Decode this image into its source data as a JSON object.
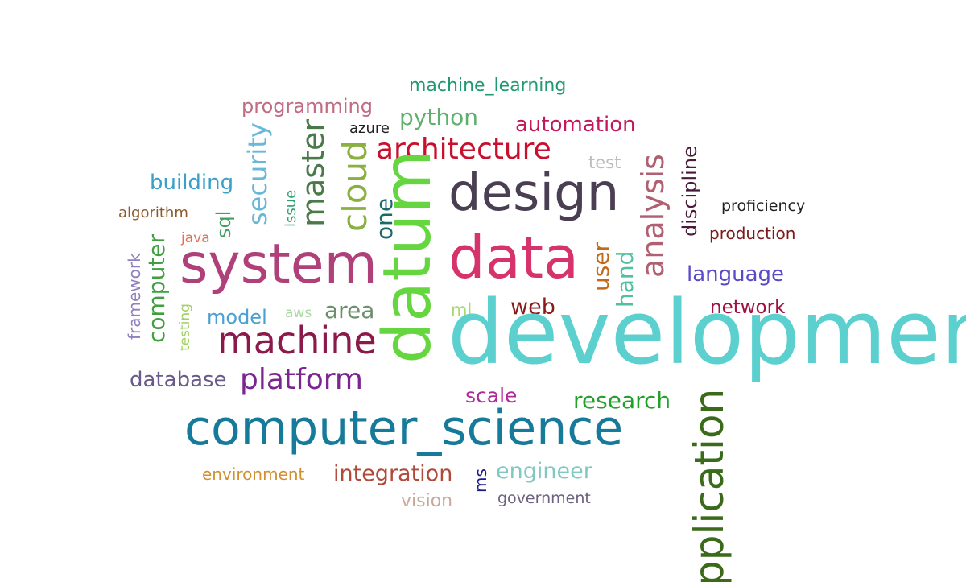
{
  "words": [
    {
      "text": "machine_learning",
      "color": "#1f9a6e",
      "orientation": "horizontal"
    },
    {
      "text": "programming",
      "color": "#c06c84",
      "orientation": "horizontal"
    },
    {
      "text": "python",
      "color": "#5fb06f",
      "orientation": "horizontal"
    },
    {
      "text": "automation",
      "color": "#c2185b",
      "orientation": "horizontal"
    },
    {
      "text": "azure",
      "color": "#222222",
      "orientation": "horizontal"
    },
    {
      "text": "architecture",
      "color": "#c8102e",
      "orientation": "horizontal"
    },
    {
      "text": "test",
      "color": "#bdbdbd",
      "orientation": "horizontal"
    },
    {
      "text": "design",
      "color": "#4a3f52",
      "orientation": "horizontal"
    },
    {
      "text": "building",
      "color": "#3aa0c8",
      "orientation": "horizontal"
    },
    {
      "text": "proficiency",
      "color": "#222222",
      "orientation": "horizontal"
    },
    {
      "text": "algorithm",
      "color": "#8b5a2b",
      "orientation": "horizontal"
    },
    {
      "text": "production",
      "color": "#7b1a1a",
      "orientation": "horizontal"
    },
    {
      "text": "java",
      "color": "#e07050",
      "orientation": "horizontal"
    },
    {
      "text": "system",
      "color": "#b0407a",
      "orientation": "horizontal"
    },
    {
      "text": "data",
      "color": "#d6336c",
      "orientation": "horizontal"
    },
    {
      "text": "language",
      "color": "#5b4ac8",
      "orientation": "horizontal"
    },
    {
      "text": "model",
      "color": "#4aa0d0",
      "orientation": "horizontal"
    },
    {
      "text": "aws",
      "color": "#a8d8a0",
      "orientation": "horizontal"
    },
    {
      "text": "area",
      "color": "#6b8e6b",
      "orientation": "horizontal"
    },
    {
      "text": "ml",
      "color": "#a8d870",
      "orientation": "horizontal"
    },
    {
      "text": "web",
      "color": "#8b1a1a",
      "orientation": "horizontal"
    },
    {
      "text": "network",
      "color": "#a01040",
      "orientation": "horizontal"
    },
    {
      "text": "machine",
      "color": "#8b1a4a",
      "orientation": "horizontal"
    },
    {
      "text": "development",
      "color": "#5ccfcf",
      "orientation": "horizontal"
    },
    {
      "text": "database",
      "color": "#6a5a8a",
      "orientation": "horizontal"
    },
    {
      "text": "platform",
      "color": "#7b2590",
      "orientation": "horizontal"
    },
    {
      "text": "scale",
      "color": "#b0289a",
      "orientation": "horizontal"
    },
    {
      "text": "research",
      "color": "#22a02a",
      "orientation": "horizontal"
    },
    {
      "text": "computer_science",
      "color": "#167a9a",
      "orientation": "horizontal"
    },
    {
      "text": "environment",
      "color": "#d09030",
      "orientation": "horizontal"
    },
    {
      "text": "integration",
      "color": "#b04a3a",
      "orientation": "horizontal"
    },
    {
      "text": "engineer",
      "color": "#80c8c0",
      "orientation": "horizontal"
    },
    {
      "text": "vision",
      "color": "#c8a898",
      "orientation": "horizontal"
    },
    {
      "text": "government",
      "color": "#6a6080",
      "orientation": "horizontal"
    },
    {
      "text": "security",
      "color": "#6ab8d8",
      "orientation": "vertical"
    },
    {
      "text": "master",
      "color": "#4a7a4a",
      "orientation": "vertical"
    },
    {
      "text": "cloud",
      "color": "#8ab040",
      "orientation": "vertical"
    },
    {
      "text": "issue",
      "color": "#30a070",
      "orientation": "vertical"
    },
    {
      "text": "sql",
      "color": "#40a060",
      "orientation": "vertical"
    },
    {
      "text": "one",
      "color": "#1a6a6a",
      "orientation": "vertical"
    },
    {
      "text": "datum",
      "color": "#66d640",
      "orientation": "vertical"
    },
    {
      "text": "analysis",
      "color": "#b06070",
      "orientation": "vertical"
    },
    {
      "text": "discipline",
      "color": "#4a1a3a",
      "orientation": "vertical"
    },
    {
      "text": "user",
      "color": "#c06a1a",
      "orientation": "vertical"
    },
    {
      "text": "hand",
      "color": "#50c0a0",
      "orientation": "vertical"
    },
    {
      "text": "computer",
      "color": "#40a040",
      "orientation": "vertical"
    },
    {
      "text": "framework",
      "color": "#9080c0",
      "orientation": "vertical"
    },
    {
      "text": "testing",
      "color": "#a0d060",
      "orientation": "vertical"
    },
    {
      "text": "ms",
      "color": "#1a1a8a",
      "orientation": "vertical"
    },
    {
      "text": "pplication",
      "color": "#3a6a1a",
      "orientation": "vertical"
    }
  ]
}
